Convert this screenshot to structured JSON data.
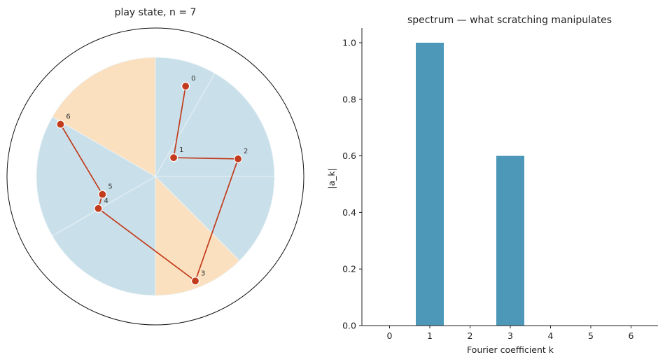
{
  "chart_data": [
    {
      "type": "polar-scatter",
      "title": "play state, n = 7",
      "colors": {
        "sector_blue": "#c9e0ea",
        "sector_orange": "#fae0bf",
        "path": "#c23b1c",
        "outline": "#111111"
      },
      "sectors": [
        {
          "from_deg": -90,
          "to_deg": -60,
          "color": "sector_blue"
        },
        {
          "from_deg": -60,
          "to_deg": 0,
          "color": "sector_blue"
        },
        {
          "from_deg": 0,
          "to_deg": 45,
          "color": "sector_blue"
        },
        {
          "from_deg": 45,
          "to_deg": 90,
          "color": "sector_orange"
        },
        {
          "from_deg": 90,
          "to_deg": 150,
          "color": "sector_blue"
        },
        {
          "from_deg": 150,
          "to_deg": 210,
          "color": "sector_blue"
        },
        {
          "from_deg": 210,
          "to_deg": 270,
          "color": "sector_orange"
        }
      ],
      "points": [
        {
          "label": "0",
          "angle_deg": -71.5,
          "r": 0.8
        },
        {
          "label": "1",
          "angle_deg": -45.8,
          "r": 0.22
        },
        {
          "label": "2",
          "angle_deg": -12.0,
          "r": 0.71
        },
        {
          "label": "3",
          "angle_deg": 69.1,
          "r": 0.94
        },
        {
          "label": "4",
          "angle_deg": 150.7,
          "r": 0.55
        },
        {
          "label": "5",
          "angle_deg": 161.3,
          "r": 0.47
        },
        {
          "label": "6",
          "angle_deg": -151.2,
          "r": 0.91
        }
      ]
    },
    {
      "type": "bar",
      "title": "spectrum — what scratching manipulates",
      "xlabel": "Fourier coefficient k",
      "ylabel": "|a_k|",
      "categories": [
        "0",
        "1",
        "2",
        "3",
        "4",
        "5",
        "6"
      ],
      "values": [
        0,
        1.0,
        0,
        0.6,
        0,
        0,
        0
      ],
      "ylim": [
        0,
        1.05
      ],
      "yticks": [
        "0.0",
        "0.2",
        "0.4",
        "0.6",
        "0.8",
        "1.0"
      ],
      "bar_color": "#4d98b8"
    }
  ]
}
